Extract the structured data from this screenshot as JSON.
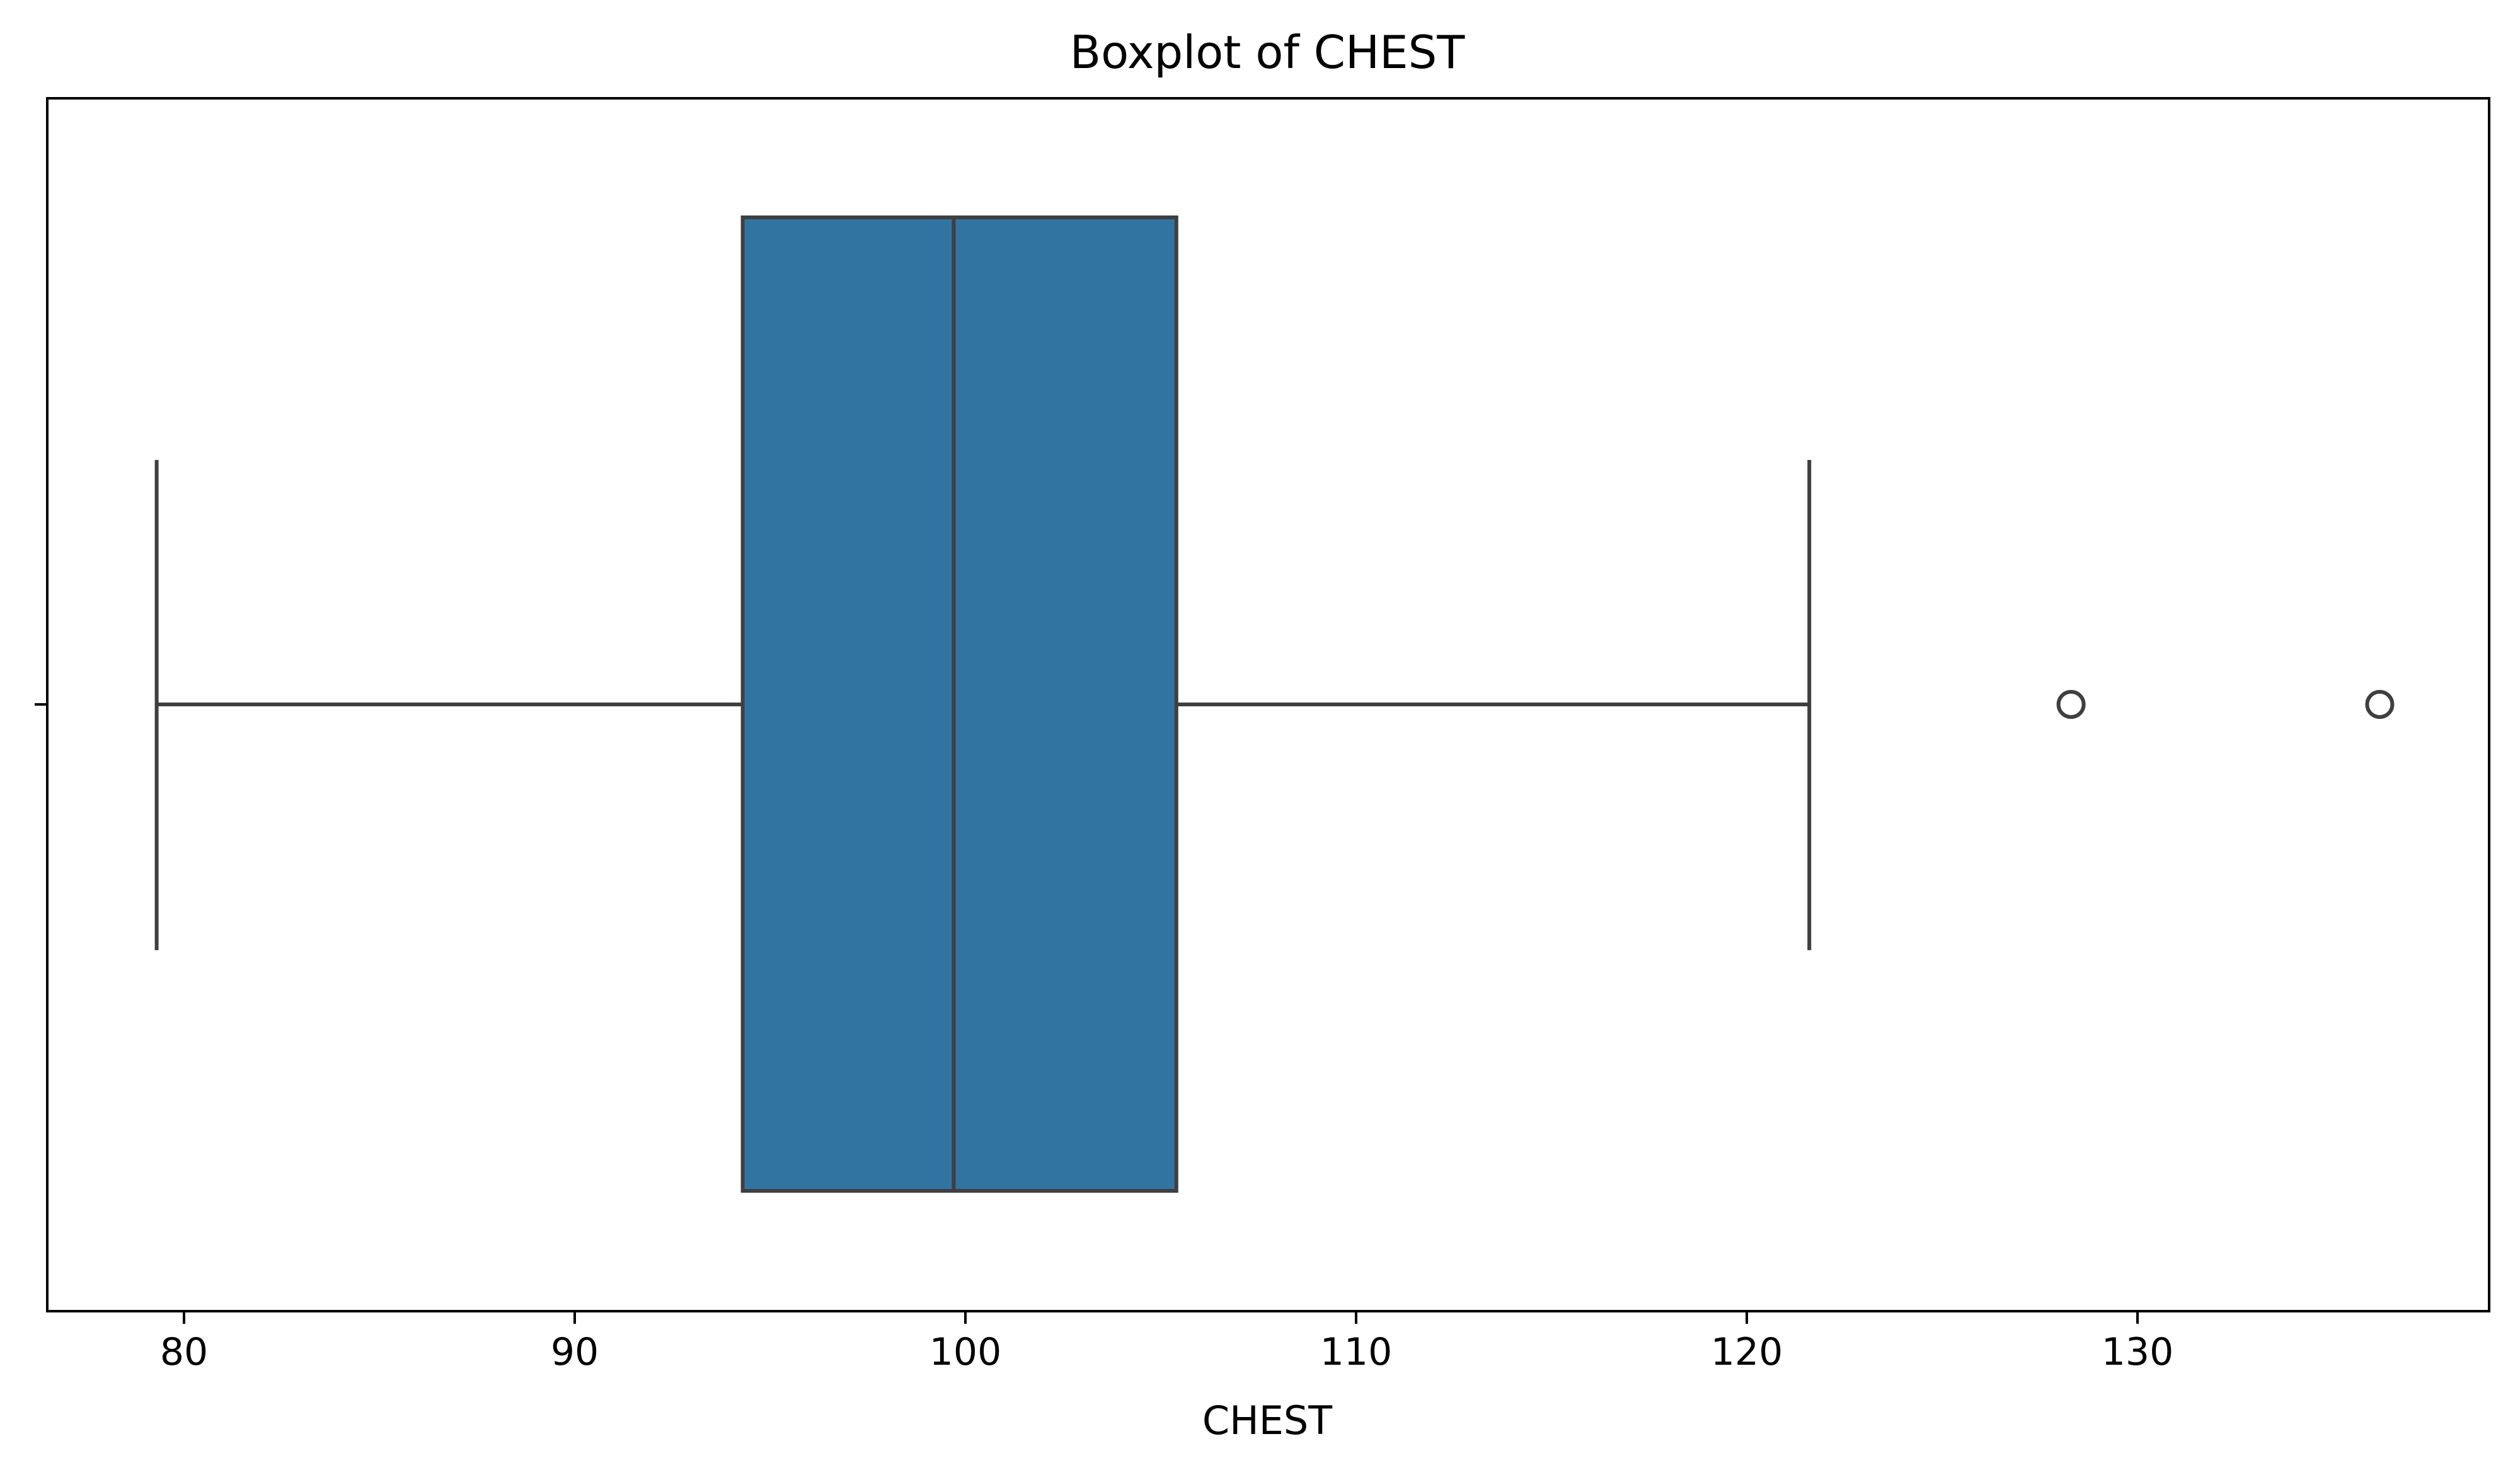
{
  "chart_data": {
    "type": "box",
    "title": "Boxplot of CHEST",
    "xlabel": "CHEST",
    "ylabel": "",
    "orientation": "horizontal",
    "xlim": [
      76.5,
      139.0
    ],
    "xticks": [
      80,
      90,
      100,
      110,
      120,
      130
    ],
    "xtick_labels": [
      "80",
      "90",
      "100",
      "110",
      "120",
      "130"
    ],
    "grid": false,
    "legend": "none",
    "box": {
      "whisker_low": 79.3,
      "q1": 94.3,
      "median": 99.7,
      "q3": 105.4,
      "whisker_high": 121.6,
      "outliers": [
        128.3,
        136.2
      ]
    },
    "colors": {
      "box_fill": "#3274a1",
      "line": "#3f3f3f",
      "frame": "#000000",
      "background": "#ffffff"
    }
  }
}
